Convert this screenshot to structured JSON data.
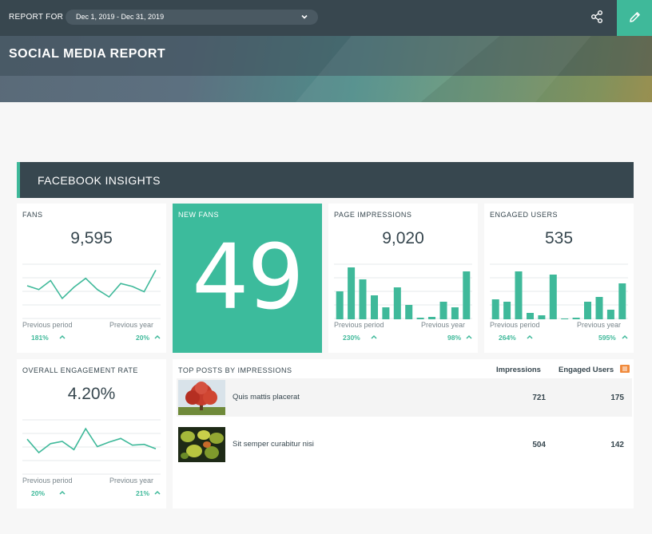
{
  "header": {
    "report_for_label": "REPORT FOR",
    "date_range": "Dec 1, 2019 - Dec 31, 2019",
    "title": "SOCIAL MEDIA REPORT",
    "accent_color": "#3fb99a"
  },
  "section": {
    "title": "FACEBOOK INSIGHTS"
  },
  "cards": {
    "fans": {
      "label": "FANS",
      "value": "9,595",
      "prev_period_label": "Previous period",
      "prev_period_pct": "181%",
      "prev_year_label": "Previous year",
      "prev_year_pct": "20%",
      "trend": [
        45,
        40,
        52,
        28,
        43,
        55,
        40,
        30,
        48,
        44,
        37,
        66
      ]
    },
    "new_fans": {
      "label": "NEW FANS",
      "value": "49"
    },
    "page_impressions": {
      "label": "PAGE IMPRESSIONS",
      "value": "9,020",
      "prev_period_label": "Previous period",
      "prev_period_pct": "230%",
      "prev_year_label": "Previous year",
      "prev_year_pct": "98%",
      "bars": [
        35,
        65,
        50,
        30,
        15,
        40,
        18,
        2,
        3,
        22,
        15,
        60
      ]
    },
    "engaged_users": {
      "label": "ENGAGED USERS",
      "value": "535",
      "prev_period_label": "Previous period",
      "prev_period_pct": "264%",
      "prev_year_label": "Previous year",
      "prev_year_pct": "595%",
      "bars": [
        25,
        22,
        60,
        8,
        5,
        56,
        1,
        2,
        22,
        28,
        12,
        45
      ]
    },
    "engagement_rate": {
      "label": "OVERALL ENGAGEMENT RATE",
      "value": "4.20%",
      "prev_period_label": "Previous period",
      "prev_period_pct": "20%",
      "prev_year_label": "Previous year",
      "prev_year_pct": "21%",
      "trend": [
        48,
        30,
        42,
        45,
        34,
        62,
        38,
        44,
        49,
        40,
        41,
        35
      ]
    }
  },
  "top_posts": {
    "title": "TOP POSTS BY IMPRESSIONS",
    "col_impressions": "Impressions",
    "col_engaged": "Engaged Users",
    "rows": [
      {
        "title": "Quis mattis placerat",
        "impressions": "721",
        "engaged": "175"
      },
      {
        "title": "Sit semper curabitur nisi",
        "impressions": "504",
        "engaged": "142"
      }
    ]
  }
}
